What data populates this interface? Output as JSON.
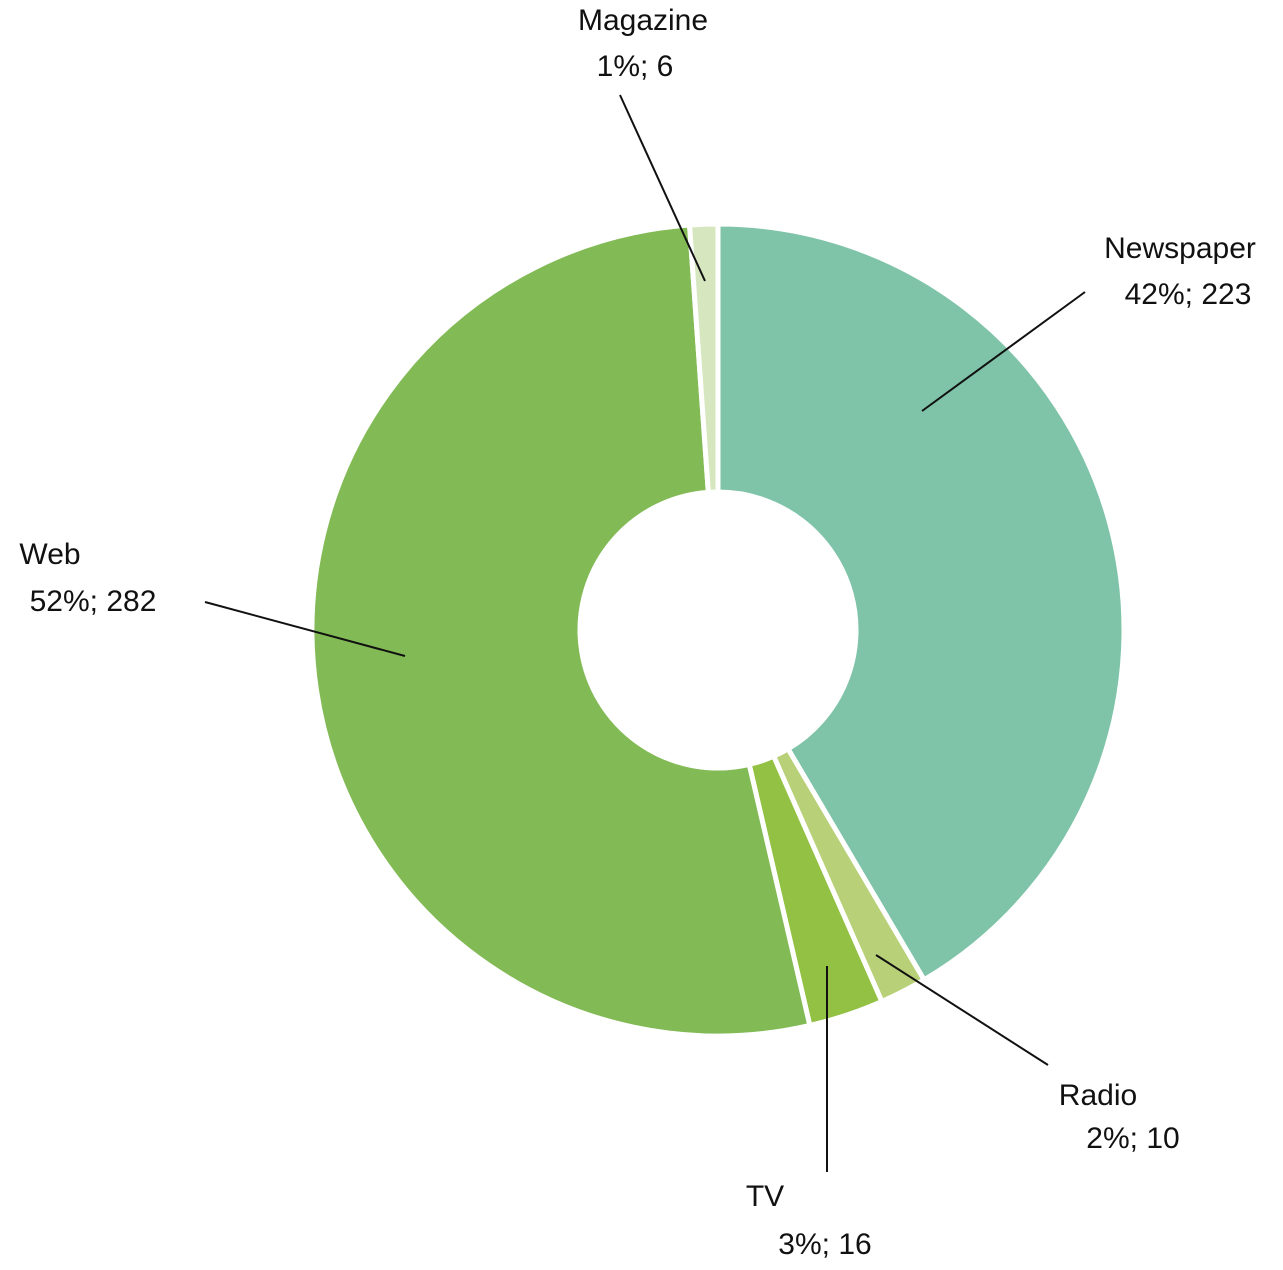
{
  "chart_data": {
    "type": "donut",
    "categories": [
      "Newspaper",
      "Radio",
      "TV",
      "Web",
      "Magazine"
    ],
    "values": [
      223,
      10,
      16,
      282,
      6
    ],
    "value_labels": [
      "42%; 223",
      "2%; 10",
      "3%; 16",
      "52%; 282",
      "1%; 6"
    ],
    "colors": [
      "#7fc4a9",
      "#b8d077",
      "#92c143",
      "#82ba55",
      "#d6e7c0"
    ]
  }
}
